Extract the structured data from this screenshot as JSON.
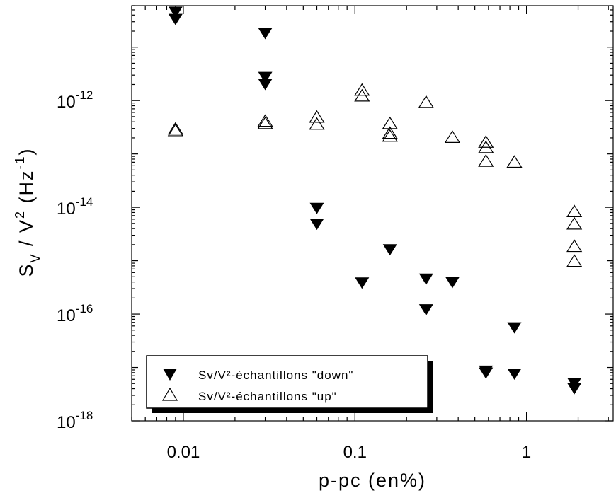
{
  "chart_data": {
    "type": "scatter",
    "x_scale": "log",
    "y_scale": "log",
    "xlim": [
      0.005,
      3.2
    ],
    "ylim": [
      1e-18,
      6e-11
    ],
    "grid": false,
    "legend_position": "bottom-left",
    "xlabel": "p-pc (en%)",
    "ylabel": {
      "base1": "S",
      "sub": "V",
      "mid": " / V",
      "sup2": "2",
      "unit_open": " (Hz",
      "unit_exp": "-1",
      "unit_close": ")"
    },
    "x_ticks": [
      {
        "value": 0.01,
        "label": "0.01"
      },
      {
        "value": 0.1,
        "label": "0.1"
      },
      {
        "value": 1,
        "label": "1"
      }
    ],
    "y_ticks": [
      {
        "value": 1e-12,
        "base": "10",
        "exp": "-12"
      },
      {
        "value": 1e-14,
        "base": "10",
        "exp": "-14"
      },
      {
        "value": 1e-16,
        "base": "10",
        "exp": "-16"
      },
      {
        "value": 1e-18,
        "base": "10",
        "exp": "-18"
      }
    ],
    "series": [
      {
        "name": "Sv/V²-échantillons \"down\"",
        "marker": "triangle-down-filled",
        "points": [
          [
            0.009,
            4.5e-11
          ],
          [
            0.009,
            3.3e-11
          ],
          [
            0.03,
            1.8e-11
          ],
          [
            0.03,
            2.7e-12
          ],
          [
            0.03,
            2e-12
          ],
          [
            0.06,
            9.5e-15
          ],
          [
            0.06,
            4.8e-15
          ],
          [
            0.16,
            1.6e-15
          ],
          [
            0.11,
            3.8e-16
          ],
          [
            0.26,
            4.5e-16
          ],
          [
            0.26,
            1.2e-16
          ],
          [
            0.37,
            3.9e-16
          ],
          [
            0.58,
            8.5e-18
          ],
          [
            0.58,
            7.8e-18
          ],
          [
            0.85,
            5.5e-17
          ],
          [
            0.85,
            7.5e-18
          ],
          [
            1.9,
            5e-18
          ],
          [
            1.9,
            4e-18
          ]
        ]
      },
      {
        "name": "Sv/V²-échantillons \"up\"",
        "marker": "triangle-up-open",
        "points": [
          [
            0.009,
            3e-13
          ],
          [
            0.009,
            2.8e-13
          ],
          [
            0.03,
            4.2e-13
          ],
          [
            0.03,
            3.8e-13
          ],
          [
            0.06,
            5e-13
          ],
          [
            0.06,
            3.7e-13
          ],
          [
            0.11,
            1.6e-12
          ],
          [
            0.11,
            1.25e-12
          ],
          [
            0.16,
            3.8e-13
          ],
          [
            0.16,
            2.5e-13
          ],
          [
            0.16,
            2.2e-13
          ],
          [
            0.26,
            9.5e-13
          ],
          [
            0.37,
            2.1e-13
          ],
          [
            0.58,
            1.7e-13
          ],
          [
            0.58,
            1.35e-13
          ],
          [
            0.58,
            7.5e-14
          ],
          [
            0.85,
            7.2e-14
          ],
          [
            1.9,
            8.5e-15
          ],
          [
            1.9,
            5e-15
          ],
          [
            1.9,
            1.9e-15
          ],
          [
            1.9,
            1e-15
          ]
        ]
      }
    ]
  }
}
